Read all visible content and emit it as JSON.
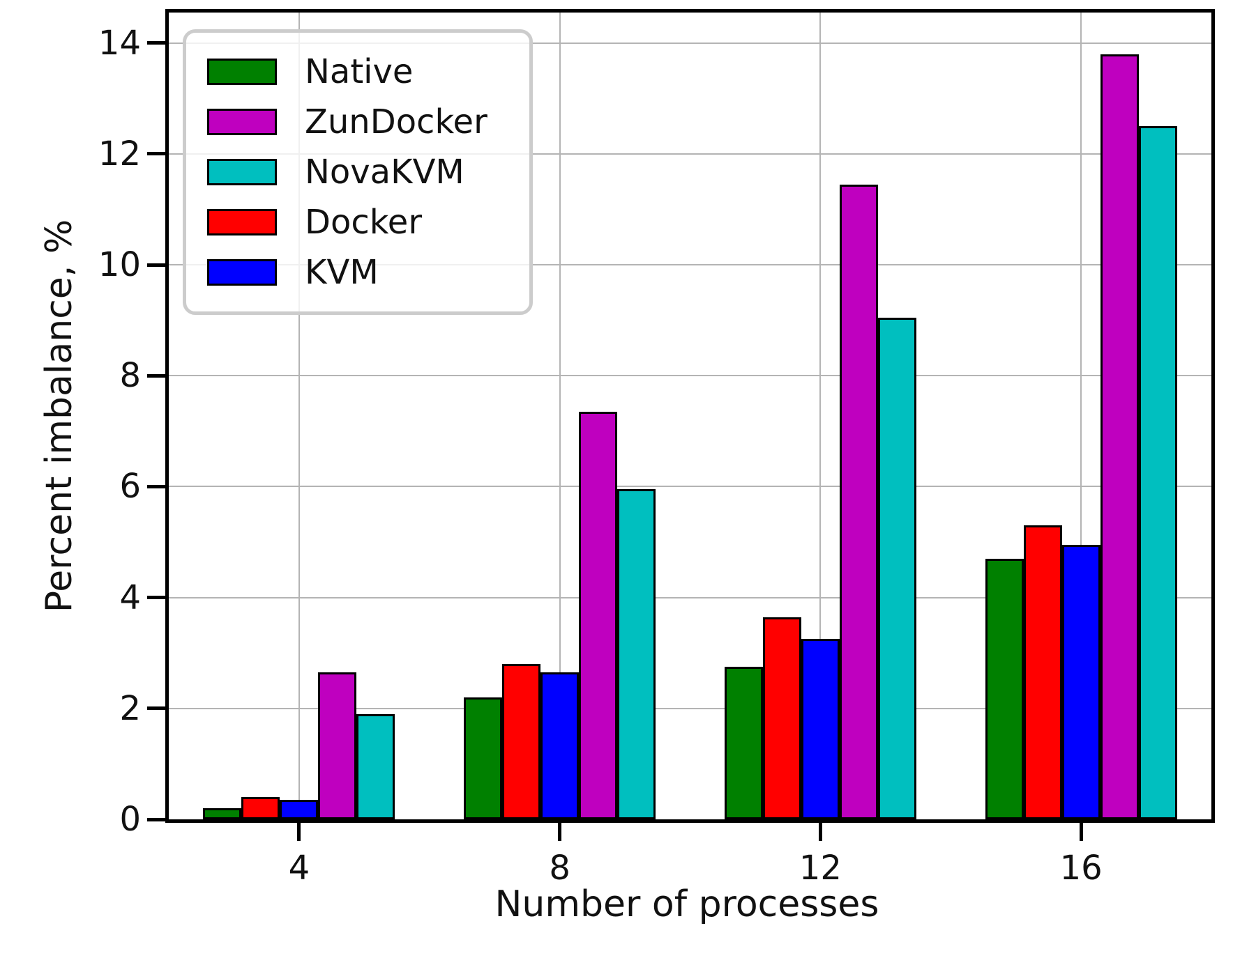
{
  "chart_data": {
    "type": "bar",
    "title": "",
    "xlabel": "Number of processes",
    "ylabel": "Percent imbalance, %",
    "categories": [
      "4",
      "8",
      "12",
      "16"
    ],
    "series": [
      {
        "name": "Native",
        "color": "#008000",
        "values": [
          0.2,
          2.2,
          2.75,
          4.7
        ]
      },
      {
        "name": "Docker",
        "color": "#ff0000",
        "values": [
          0.4,
          2.8,
          3.65,
          5.3
        ]
      },
      {
        "name": "KVM",
        "color": "#0000ff",
        "values": [
          0.35,
          2.65,
          3.25,
          4.95
        ]
      },
      {
        "name": "ZunDocker",
        "color": "#bf00bf",
        "values": [
          2.65,
          7.35,
          11.45,
          13.8
        ]
      },
      {
        "name": "NovaKVM",
        "color": "#00bfbf",
        "values": [
          1.9,
          5.95,
          9.05,
          12.5
        ]
      }
    ],
    "legend_entries": [
      "Native",
      "ZunDocker",
      "NovaKVM",
      "Docker",
      "KVM"
    ],
    "legend_position": "upper left",
    "yticks": [
      0,
      2,
      4,
      6,
      8,
      10,
      12,
      14
    ],
    "ylim": [
      0,
      14.55
    ],
    "grid": true,
    "grid_color": "#b4b4b4",
    "bar_edge_color": "#000000",
    "spine_color": "#000000"
  }
}
